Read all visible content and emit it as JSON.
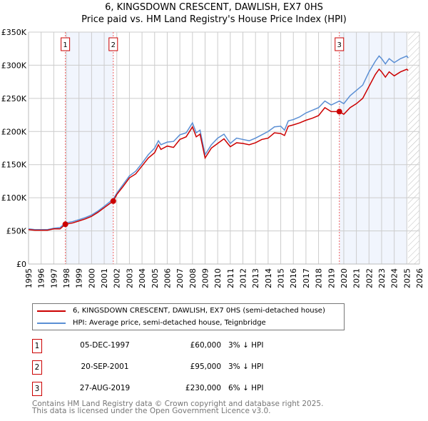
{
  "chart_data": {
    "type": "line",
    "title": "6, KINGSDOWN CRESCENT, DAWLISH, EX7 0HS",
    "subtitle": "Price paid vs. HM Land Registry's House Price Index (HPI)",
    "xlim": [
      1995,
      2026
    ],
    "ylim": [
      0,
      350000
    ],
    "x_ticks": [
      "1995",
      "1996",
      "1997",
      "1998",
      "1999",
      "2000",
      "2001",
      "2002",
      "2003",
      "2004",
      "2005",
      "2006",
      "2007",
      "2008",
      "2009",
      "2010",
      "2011",
      "2012",
      "2013",
      "2014",
      "2015",
      "2016",
      "2017",
      "2018",
      "2019",
      "2020",
      "2021",
      "2022",
      "2023",
      "2024",
      "2025",
      "2026"
    ],
    "y_ticks": [
      {
        "v": 0,
        "l": "£0"
      },
      {
        "v": 50000,
        "l": "£50K"
      },
      {
        "v": 100000,
        "l": "£100K"
      },
      {
        "v": 150000,
        "l": "£150K"
      },
      {
        "v": 200000,
        "l": "£200K"
      },
      {
        "v": 250000,
        "l": "£250K"
      },
      {
        "v": 300000,
        "l": "£300K"
      },
      {
        "v": 350000,
        "l": "£350K"
      }
    ],
    "x": [
      1995,
      1995.5,
      1996,
      1996.5,
      1997,
      1997.5,
      1997.92,
      1998.5,
      1999,
      1999.5,
      2000,
      2000.5,
      2001,
      2001.72,
      2002,
      2002.5,
      2003,
      2003.5,
      2004,
      2004.5,
      2005,
      2005.3,
      2005.5,
      2006,
      2006.5,
      2007,
      2007.5,
      2008,
      2008.3,
      2008.6,
      2009,
      2009.5,
      2010,
      2010.5,
      2011,
      2011.5,
      2012,
      2012.5,
      2013,
      2013.5,
      2014,
      2014.5,
      2015,
      2015.3,
      2015.6,
      2016,
      2016.5,
      2017,
      2017.5,
      2018,
      2018.5,
      2019,
      2019.65,
      2020,
      2020.5,
      2021,
      2021.5,
      2022,
      2022.5,
      2022.8,
      2023,
      2023.3,
      2023.6,
      2024,
      2024.5,
      2025,
      2025.1
    ],
    "series": [
      {
        "name": "6, KINGSDOWN CRESCENT, DAWLISH, EX7 0HS (semi-detached house)",
        "color": "#cc0000",
        "values": [
          52000,
          51000,
          51000,
          51000,
          53000,
          53000,
          60000,
          62000,
          65000,
          68000,
          72000,
          78000,
          85000,
          95000,
          105000,
          117000,
          130000,
          136000,
          148000,
          160000,
          168000,
          180000,
          173000,
          178000,
          176000,
          188000,
          192000,
          207000,
          192000,
          196000,
          160000,
          175000,
          182000,
          189000,
          177000,
          183000,
          182000,
          180000,
          183000,
          188000,
          190000,
          198000,
          197000,
          194000,
          208000,
          210000,
          213000,
          217000,
          220000,
          224000,
          236000,
          230000,
          230000,
          226000,
          236000,
          242000,
          250000,
          268000,
          286000,
          294000,
          290000,
          282000,
          290000,
          284000,
          290000,
          294000,
          292000
        ]
      },
      {
        "name": "HPI: Average price, semi-detached house, Teignbridge",
        "color": "#5b8fd4",
        "values": [
          53000,
          52000,
          52000,
          52000,
          54000,
          55000,
          62000,
          64000,
          67000,
          70000,
          74000,
          80000,
          87000,
          98000,
          107000,
          120000,
          133000,
          140000,
          152000,
          165000,
          175000,
          186000,
          180000,
          184000,
          185000,
          195000,
          198000,
          213000,
          198000,
          202000,
          165000,
          180000,
          190000,
          196000,
          182000,
          190000,
          188000,
          186000,
          190000,
          195000,
          200000,
          207000,
          208000,
          202000,
          216000,
          218000,
          222000,
          228000,
          232000,
          236000,
          246000,
          240000,
          246000,
          242000,
          254000,
          262000,
          270000,
          290000,
          306000,
          314000,
          310000,
          302000,
          310000,
          304000,
          310000,
          314000,
          311000
        ]
      }
    ],
    "transactions": [
      {
        "n": "1",
        "date": "05-DEC-1997",
        "x": 1997.92,
        "price": "£60,000",
        "value": 60000,
        "hpi": "3% ↓ HPI"
      },
      {
        "n": "2",
        "date": "20-SEP-2001",
        "x": 2001.72,
        "price": "£95,000",
        "value": 95000,
        "hpi": "3% ↓ HPI"
      },
      {
        "n": "3",
        "date": "27-AUG-2019",
        "x": 2019.65,
        "price": "£230,000",
        "value": 230000,
        "hpi": "6% ↓ HPI"
      }
    ],
    "shaded_ranges": [
      [
        1997.92,
        2001.72
      ],
      [
        2019.65,
        2025.0
      ]
    ],
    "hatched_from": 2025.1
  },
  "footer": [
    "Contains HM Land Registry data © Crown copyright and database right 2025.",
    "This data is licensed under the Open Government Licence v3.0."
  ]
}
